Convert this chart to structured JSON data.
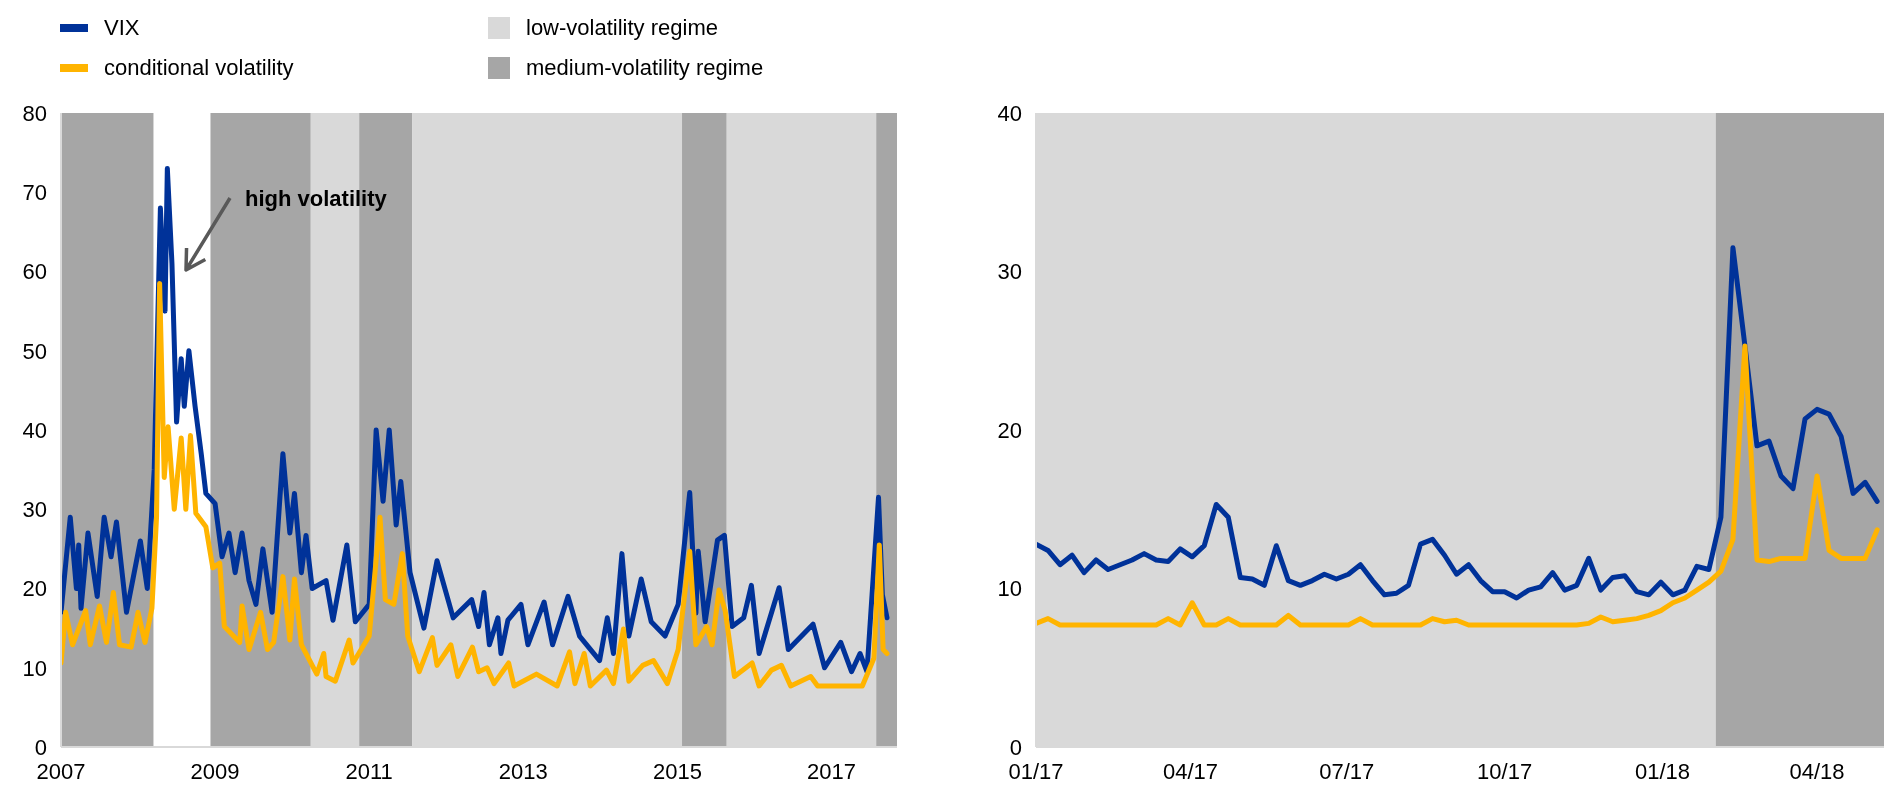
{
  "chart_data": [
    {
      "type": "line",
      "xlim": [
        2007,
        2017.85
      ],
      "xticks": [
        2007,
        2009,
        2011,
        2013,
        2015,
        2017
      ],
      "ylim": [
        0,
        80
      ],
      "yticks": [
        0,
        10,
        20,
        30,
        40,
        50,
        60,
        70,
        80
      ],
      "grid": false,
      "legend": "top",
      "line_style": "solid",
      "series": [
        {
          "name": "VIX",
          "color": "#003299",
          "x": [
            2007.0,
            2007.12,
            2007.2,
            2007.23,
            2007.26,
            2007.35,
            2007.47,
            2007.56,
            2007.65,
            2007.72,
            2007.85,
            2008.03,
            2008.12,
            2008.21,
            2008.29,
            2008.35,
            2008.38,
            2008.44,
            2008.5,
            2008.56,
            2008.6,
            2008.66,
            2008.74,
            2008.82,
            2008.88,
            2009.0,
            2009.09,
            2009.18,
            2009.26,
            2009.35,
            2009.44,
            2009.53,
            2009.62,
            2009.74,
            2009.88,
            2009.97,
            2010.03,
            2010.12,
            2010.18,
            2010.26,
            2010.44,
            2010.53,
            2010.71,
            2010.82,
            2011.0,
            2011.09,
            2011.18,
            2011.26,
            2011.35,
            2011.41,
            2011.53,
            2011.71,
            2011.88,
            2012.09,
            2012.33,
            2012.42,
            2012.49,
            2012.56,
            2012.67,
            2012.71,
            2012.8,
            2012.97,
            2013.06,
            2013.27,
            2013.38,
            2013.58,
            2013.73,
            2013.99,
            2014.09,
            2014.17,
            2014.28,
            2014.37,
            2014.53,
            2014.66,
            2014.84,
            2015.01,
            2015.16,
            2015.24,
            2015.27,
            2015.36,
            2015.52,
            2015.61,
            2015.71,
            2015.86,
            2015.96,
            2016.06,
            2016.32,
            2016.44,
            2016.76,
            2016.91,
            2017.12,
            2017.26,
            2017.37,
            2017.46,
            2017.61,
            2017.66,
            2017.72
          ],
          "values": [
            17,
            29,
            20,
            25.5,
            17.5,
            27,
            19,
            29,
            24,
            28.4,
            17,
            26,
            20,
            35,
            68,
            55,
            73,
            61,
            41,
            49,
            43,
            50,
            43,
            37,
            32,
            30.7,
            24,
            27,
            22,
            27,
            21,
            18,
            25,
            17,
            37,
            27,
            32,
            22,
            26.7,
            20,
            21,
            16,
            25.5,
            15.8,
            18,
            40,
            31,
            40,
            28,
            33.5,
            22,
            15,
            23.5,
            16.3,
            18.6,
            15.2,
            19.5,
            12.9,
            16.3,
            11.8,
            16,
            18,
            12.9,
            18.3,
            12.9,
            19,
            14,
            10.9,
            16.3,
            11.8,
            24.4,
            14,
            21.2,
            15.8,
            14,
            18,
            32.1,
            16.9,
            24.7,
            15.8,
            26.1,
            26.7,
            15.2,
            16.3,
            20.4,
            11.8,
            20.1,
            12.3,
            15.5,
            10,
            13.2,
            9.5,
            11.8,
            9.5,
            31.5,
            19.2,
            16.3
          ]
        },
        {
          "name": "conditional volatility",
          "color": "#ffb400",
          "x": [
            2007.0,
            2007.06,
            2007.15,
            2007.32,
            2007.38,
            2007.5,
            2007.59,
            2007.68,
            2007.76,
            2007.91,
            2008.0,
            2008.09,
            2008.18,
            2008.24,
            2008.28,
            2008.34,
            2008.39,
            2008.47,
            2008.56,
            2008.62,
            2008.68,
            2008.75,
            2008.88,
            2008.97,
            2009.06,
            2009.12,
            2009.32,
            2009.35,
            2009.44,
            2009.59,
            2009.68,
            2009.76,
            2009.88,
            2009.97,
            2010.03,
            2010.12,
            2010.32,
            2010.41,
            2010.44,
            2010.56,
            2010.74,
            2010.79,
            2011.0,
            2011.14,
            2011.21,
            2011.32,
            2011.43,
            2011.5,
            2011.65,
            2011.82,
            2011.88,
            2012.06,
            2012.15,
            2012.34,
            2012.42,
            2012.53,
            2012.62,
            2012.81,
            2012.88,
            2013.17,
            2013.44,
            2013.6,
            2013.67,
            2013.79,
            2013.87,
            2014.08,
            2014.17,
            2014.3,
            2014.37,
            2014.55,
            2014.69,
            2014.87,
            2015.01,
            2015.16,
            2015.24,
            2015.38,
            2015.45,
            2015.54,
            2015.62,
            2015.74,
            2015.97,
            2016.06,
            2016.22,
            2016.35,
            2016.47,
            2016.73,
            2016.82,
            2017.4,
            2017.55,
            2017.62,
            2017.67,
            2017.72
          ],
          "values": [
            10.6,
            17,
            12.9,
            17.2,
            12.9,
            17.8,
            13.2,
            19.5,
            12.9,
            12.6,
            17,
            13.2,
            17.5,
            29,
            58.5,
            34,
            40.4,
            30,
            39,
            30,
            39.3,
            29.5,
            27.8,
            22.6,
            23.2,
            15.2,
            13.2,
            17.8,
            12.3,
            17,
            12.3,
            13.2,
            21.5,
            13.5,
            21.2,
            12.9,
            9.2,
            11.8,
            8.9,
            8.3,
            13.5,
            10.6,
            14,
            29,
            18.6,
            18,
            24.4,
            14,
            9.5,
            13.8,
            10.3,
            12.9,
            8.9,
            12.6,
            9.5,
            10,
            8,
            10.6,
            7.7,
            9.2,
            7.7,
            12,
            8,
            11.8,
            7.7,
            9.7,
            8,
            14.9,
            8.3,
            10.3,
            10.9,
            8,
            12.3,
            24.7,
            12.9,
            15.2,
            12.9,
            19.8,
            17.2,
            8.9,
            10.6,
            7.7,
            9.7,
            10.3,
            7.7,
            8.9,
            7.7,
            7.7,
            11.2,
            25.5,
            12.3,
            11.8
          ]
        }
      ],
      "bands": [
        {
          "axis": "x",
          "from": 2010.24,
          "to": 2010.87,
          "label": "low-volatility regime",
          "color": "#d9d9d9"
        },
        {
          "axis": "x",
          "from": 2007,
          "to": 2008.2,
          "label": "medium-volatility regime",
          "color": "#a6a6a6"
        },
        {
          "axis": "x",
          "from": 2008.94,
          "to": 2010.24,
          "color": "#a6a6a6"
        },
        {
          "axis": "x",
          "from": 2010.87,
          "to": 2011.56,
          "color": "#a6a6a6"
        },
        {
          "axis": "x",
          "from": 2011.56,
          "to": 2015.06,
          "color": "#d9d9d9"
        },
        {
          "axis": "x",
          "from": 2015.06,
          "to": 2015.64,
          "color": "#a6a6a6"
        },
        {
          "axis": "x",
          "from": 2015.64,
          "to": 2017.58,
          "color": "#d9d9d9"
        },
        {
          "axis": "x",
          "from": 2017.58,
          "to": 2017.85,
          "color": "#a6a6a6"
        }
      ],
      "annotations": [
        "high volatility"
      ]
    },
    {
      "type": "line",
      "xlim": [
        "2017-01-01",
        "2018-05-10"
      ],
      "xticks": [
        {
          "value": "2017-01-01",
          "label": "01/17"
        },
        {
          "value": "2017-04-01",
          "label": "04/17"
        },
        {
          "value": "2017-07-01",
          "label": "07/17"
        },
        {
          "value": "2017-10-01",
          "label": "10/17"
        },
        {
          "value": "2018-01-01",
          "label": "01/18"
        },
        {
          "value": "2018-04-01",
          "label": "04/18"
        }
      ],
      "ylim": [
        0,
        40
      ],
      "yticks": [
        0,
        10,
        20,
        30,
        40
      ],
      "grid": false,
      "line_style": "solid",
      "x": [
        "2017-01-01",
        "2017-01-08",
        "2017-01-15",
        "2017-01-22",
        "2017-01-29",
        "2017-02-05",
        "2017-02-12",
        "2017-02-19",
        "2017-02-26",
        "2017-03-05",
        "2017-03-12",
        "2017-03-19",
        "2017-03-26",
        "2017-04-02",
        "2017-04-09",
        "2017-04-16",
        "2017-04-23",
        "2017-04-30",
        "2017-05-07",
        "2017-05-14",
        "2017-05-21",
        "2017-05-28",
        "2017-06-04",
        "2017-06-11",
        "2017-06-18",
        "2017-06-25",
        "2017-07-02",
        "2017-07-09",
        "2017-07-16",
        "2017-07-23",
        "2017-07-30",
        "2017-08-06",
        "2017-08-13",
        "2017-08-20",
        "2017-08-27",
        "2017-09-03",
        "2017-09-10",
        "2017-09-17",
        "2017-09-24",
        "2017-10-01",
        "2017-10-08",
        "2017-10-15",
        "2017-10-22",
        "2017-10-29",
        "2017-11-05",
        "2017-11-12",
        "2017-11-19",
        "2017-11-26",
        "2017-12-03",
        "2017-12-10",
        "2017-12-17",
        "2017-12-24",
        "2017-12-31",
        "2018-01-07",
        "2018-01-14",
        "2018-01-21",
        "2018-01-28",
        "2018-02-04",
        "2018-02-11",
        "2018-02-18",
        "2018-02-25",
        "2018-03-04",
        "2018-03-11",
        "2018-03-18",
        "2018-03-25",
        "2018-04-01",
        "2018-04-08",
        "2018-04-15",
        "2018-04-22",
        "2018-04-29",
        "2018-05-06"
      ],
      "series": [
        {
          "color": "#003299",
          "values": [
            12.8,
            12.4,
            11.5,
            12.1,
            11.0,
            11.8,
            11.2,
            11.5,
            11.8,
            12.2,
            11.8,
            11.7,
            12.5,
            12.0,
            12.7,
            15.3,
            14.5,
            10.7,
            10.6,
            10.2,
            12.7,
            10.5,
            10.2,
            10.5,
            10.9,
            10.6,
            10.9,
            11.5,
            10.5,
            9.6,
            9.7,
            10.2,
            12.8,
            13.1,
            12.1,
            10.9,
            11.5,
            10.5,
            9.8,
            9.8,
            9.4,
            9.9,
            10.1,
            11.0,
            9.9,
            10.2,
            11.9,
            9.9,
            10.7,
            10.8,
            9.8,
            9.6,
            10.4,
            9.6,
            9.9,
            11.4,
            11.2,
            14.5,
            31.5,
            25.3,
            19.0,
            19.3,
            17.1,
            16.3,
            20.7,
            21.3,
            21.0,
            19.6,
            16.0,
            16.7,
            15.5
          ]
        },
        {
          "color": "#ffb400",
          "values": [
            7.8,
            8.1,
            7.7,
            7.7,
            7.7,
            7.7,
            7.7,
            7.7,
            7.7,
            7.7,
            7.7,
            8.1,
            7.7,
            9.1,
            7.7,
            7.7,
            8.1,
            7.7,
            7.7,
            7.7,
            7.7,
            8.3,
            7.7,
            7.7,
            7.7,
            7.7,
            7.7,
            8.1,
            7.7,
            7.7,
            7.7,
            7.7,
            7.7,
            8.1,
            7.9,
            8.0,
            7.7,
            7.7,
            7.7,
            7.7,
            7.7,
            7.7,
            7.7,
            7.7,
            7.7,
            7.7,
            7.8,
            8.2,
            7.9,
            8.0,
            8.1,
            8.3,
            8.6,
            9.1,
            9.4,
            9.9,
            10.4,
            11.1,
            13.1,
            25.3,
            11.8,
            11.7,
            11.9,
            11.9,
            11.9,
            17.1,
            12.4,
            11.9,
            11.9,
            11.9,
            13.7
          ]
        }
      ],
      "bands": [
        {
          "axis": "x",
          "from": "2017-01-01",
          "to": "2018-02-01",
          "color": "#d9d9d9"
        },
        {
          "axis": "x",
          "from": "2018-02-01",
          "to": "2018-05-10",
          "color": "#a6a6a6"
        }
      ]
    }
  ]
}
